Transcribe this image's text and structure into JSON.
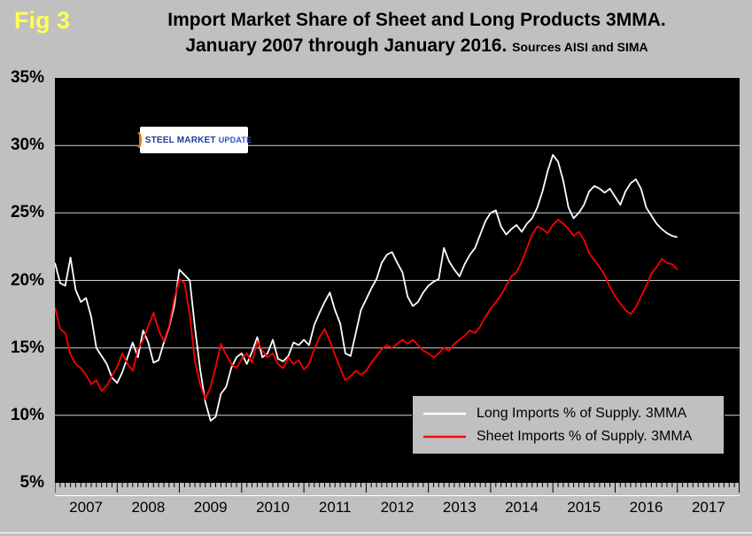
{
  "fig_label": "Fig 3",
  "title_line1": "Import Market Share of Sheet and Long Products 3MMA.",
  "title_line2": "January 2007 through January 2016.",
  "title_sources": "Sources AISI and SIMA",
  "logo": {
    "steel": "STEEL",
    "market": "MARKET",
    "update": "UPDATE"
  },
  "colors": {
    "page_background": "#c0c0c0",
    "plot_background": "#000000",
    "figure_label_yellow": "#ffff54",
    "gridline": "#cfcfcf",
    "long_line": "#ffffff",
    "sheet_line": "#ff0000",
    "logo_blue": "#1c3e94",
    "logo_orange": "#e87617"
  },
  "chart_data": {
    "type": "line",
    "title": "Import Market Share of Sheet and Long Products 3MMA. January 2007 through January 2016.",
    "sources": "Sources AISI and SIMA",
    "x_start": "2007-01",
    "x_frequency": "monthly",
    "x_year_labels": [
      "2007",
      "2008",
      "2009",
      "2010",
      "2011",
      "2012",
      "2013",
      "2014",
      "2015",
      "2016",
      "2017"
    ],
    "ylim": [
      5,
      35
    ],
    "yticks": [
      5,
      10,
      15,
      20,
      25,
      30,
      35
    ],
    "ytick_suffix": "%",
    "grid": "horizontal",
    "plot_background": "#000000",
    "legend_position": "lower-right",
    "series": [
      {
        "name": "Long Imports % of Supply. 3MMA",
        "color": "#ffffff",
        "values": [
          21.3,
          19.8,
          19.6,
          21.7,
          19.3,
          18.4,
          18.7,
          17.3,
          15.0,
          14.4,
          13.8,
          12.8,
          12.4,
          13.2,
          14.3,
          15.4,
          14.3,
          16.3,
          15.4,
          13.9,
          14.1,
          15.4,
          16.5,
          18.1,
          20.8,
          20.4,
          20.0,
          16.5,
          13.4,
          11.0,
          9.6,
          9.9,
          11.6,
          12.1,
          13.5,
          14.3,
          14.6,
          13.8,
          14.7,
          15.8,
          14.3,
          14.6,
          15.6,
          14.2,
          14.0,
          14.4,
          15.4,
          15.2,
          15.6,
          15.2,
          16.7,
          17.6,
          18.4,
          19.1,
          17.8,
          16.8,
          14.6,
          14.4,
          16.1,
          17.8,
          18.6,
          19.4,
          20.1,
          21.3,
          21.9,
          22.1,
          21.3,
          20.6,
          18.8,
          18.1,
          18.4,
          19.1,
          19.6,
          19.9,
          20.1,
          22.4,
          21.4,
          20.8,
          20.3,
          21.2,
          21.9,
          22.4,
          23.4,
          24.4,
          25.0,
          25.2,
          24.0,
          23.4,
          23.8,
          24.1,
          23.6,
          24.2,
          24.6,
          25.4,
          26.6,
          28.1,
          29.3,
          28.8,
          27.4,
          25.4,
          24.6,
          25.0,
          25.6,
          26.6,
          27.0,
          26.8,
          26.5,
          26.8,
          26.2,
          25.6,
          26.6,
          27.2,
          27.5,
          26.8,
          25.4,
          24.8,
          24.2,
          23.8,
          23.5,
          23.3,
          23.2
        ]
      },
      {
        "name": "Sheet Imports % of Supply. 3MMA",
        "color": "#ff0000",
        "values": [
          18.0,
          16.4,
          16.1,
          14.5,
          13.8,
          13.5,
          13.0,
          12.3,
          12.6,
          11.8,
          12.2,
          12.9,
          13.6,
          14.6,
          13.8,
          13.3,
          14.9,
          15.6,
          16.6,
          17.6,
          16.3,
          15.5,
          16.6,
          18.6,
          20.1,
          19.8,
          17.4,
          14.0,
          12.3,
          11.2,
          12.1,
          13.6,
          15.3,
          14.5,
          13.8,
          13.5,
          14.2,
          14.6,
          13.9,
          15.5,
          14.8,
          14.3,
          14.6,
          13.8,
          13.5,
          14.3,
          13.8,
          14.1,
          13.4,
          13.8,
          14.9,
          15.8,
          16.4,
          15.5,
          14.5,
          13.5,
          12.6,
          12.9,
          13.3,
          13.0,
          13.3,
          13.9,
          14.4,
          14.9,
          15.2,
          15.0,
          15.3,
          15.6,
          15.3,
          15.6,
          15.2,
          14.8,
          14.6,
          14.3,
          14.6,
          15.0,
          14.8,
          15.3,
          15.6,
          15.9,
          16.3,
          16.1,
          16.6,
          17.3,
          17.9,
          18.4,
          18.9,
          19.6,
          20.3,
          20.6,
          21.4,
          22.4,
          23.4,
          24.0,
          23.8,
          23.5,
          24.1,
          24.5,
          24.2,
          23.8,
          23.3,
          23.6,
          23.0,
          22.0,
          21.5,
          21.0,
          20.4,
          19.5,
          18.8,
          18.3,
          17.8,
          17.5,
          18.0,
          18.8,
          19.6,
          20.5,
          21.0,
          21.6,
          21.3,
          21.2,
          20.8
        ]
      }
    ]
  }
}
